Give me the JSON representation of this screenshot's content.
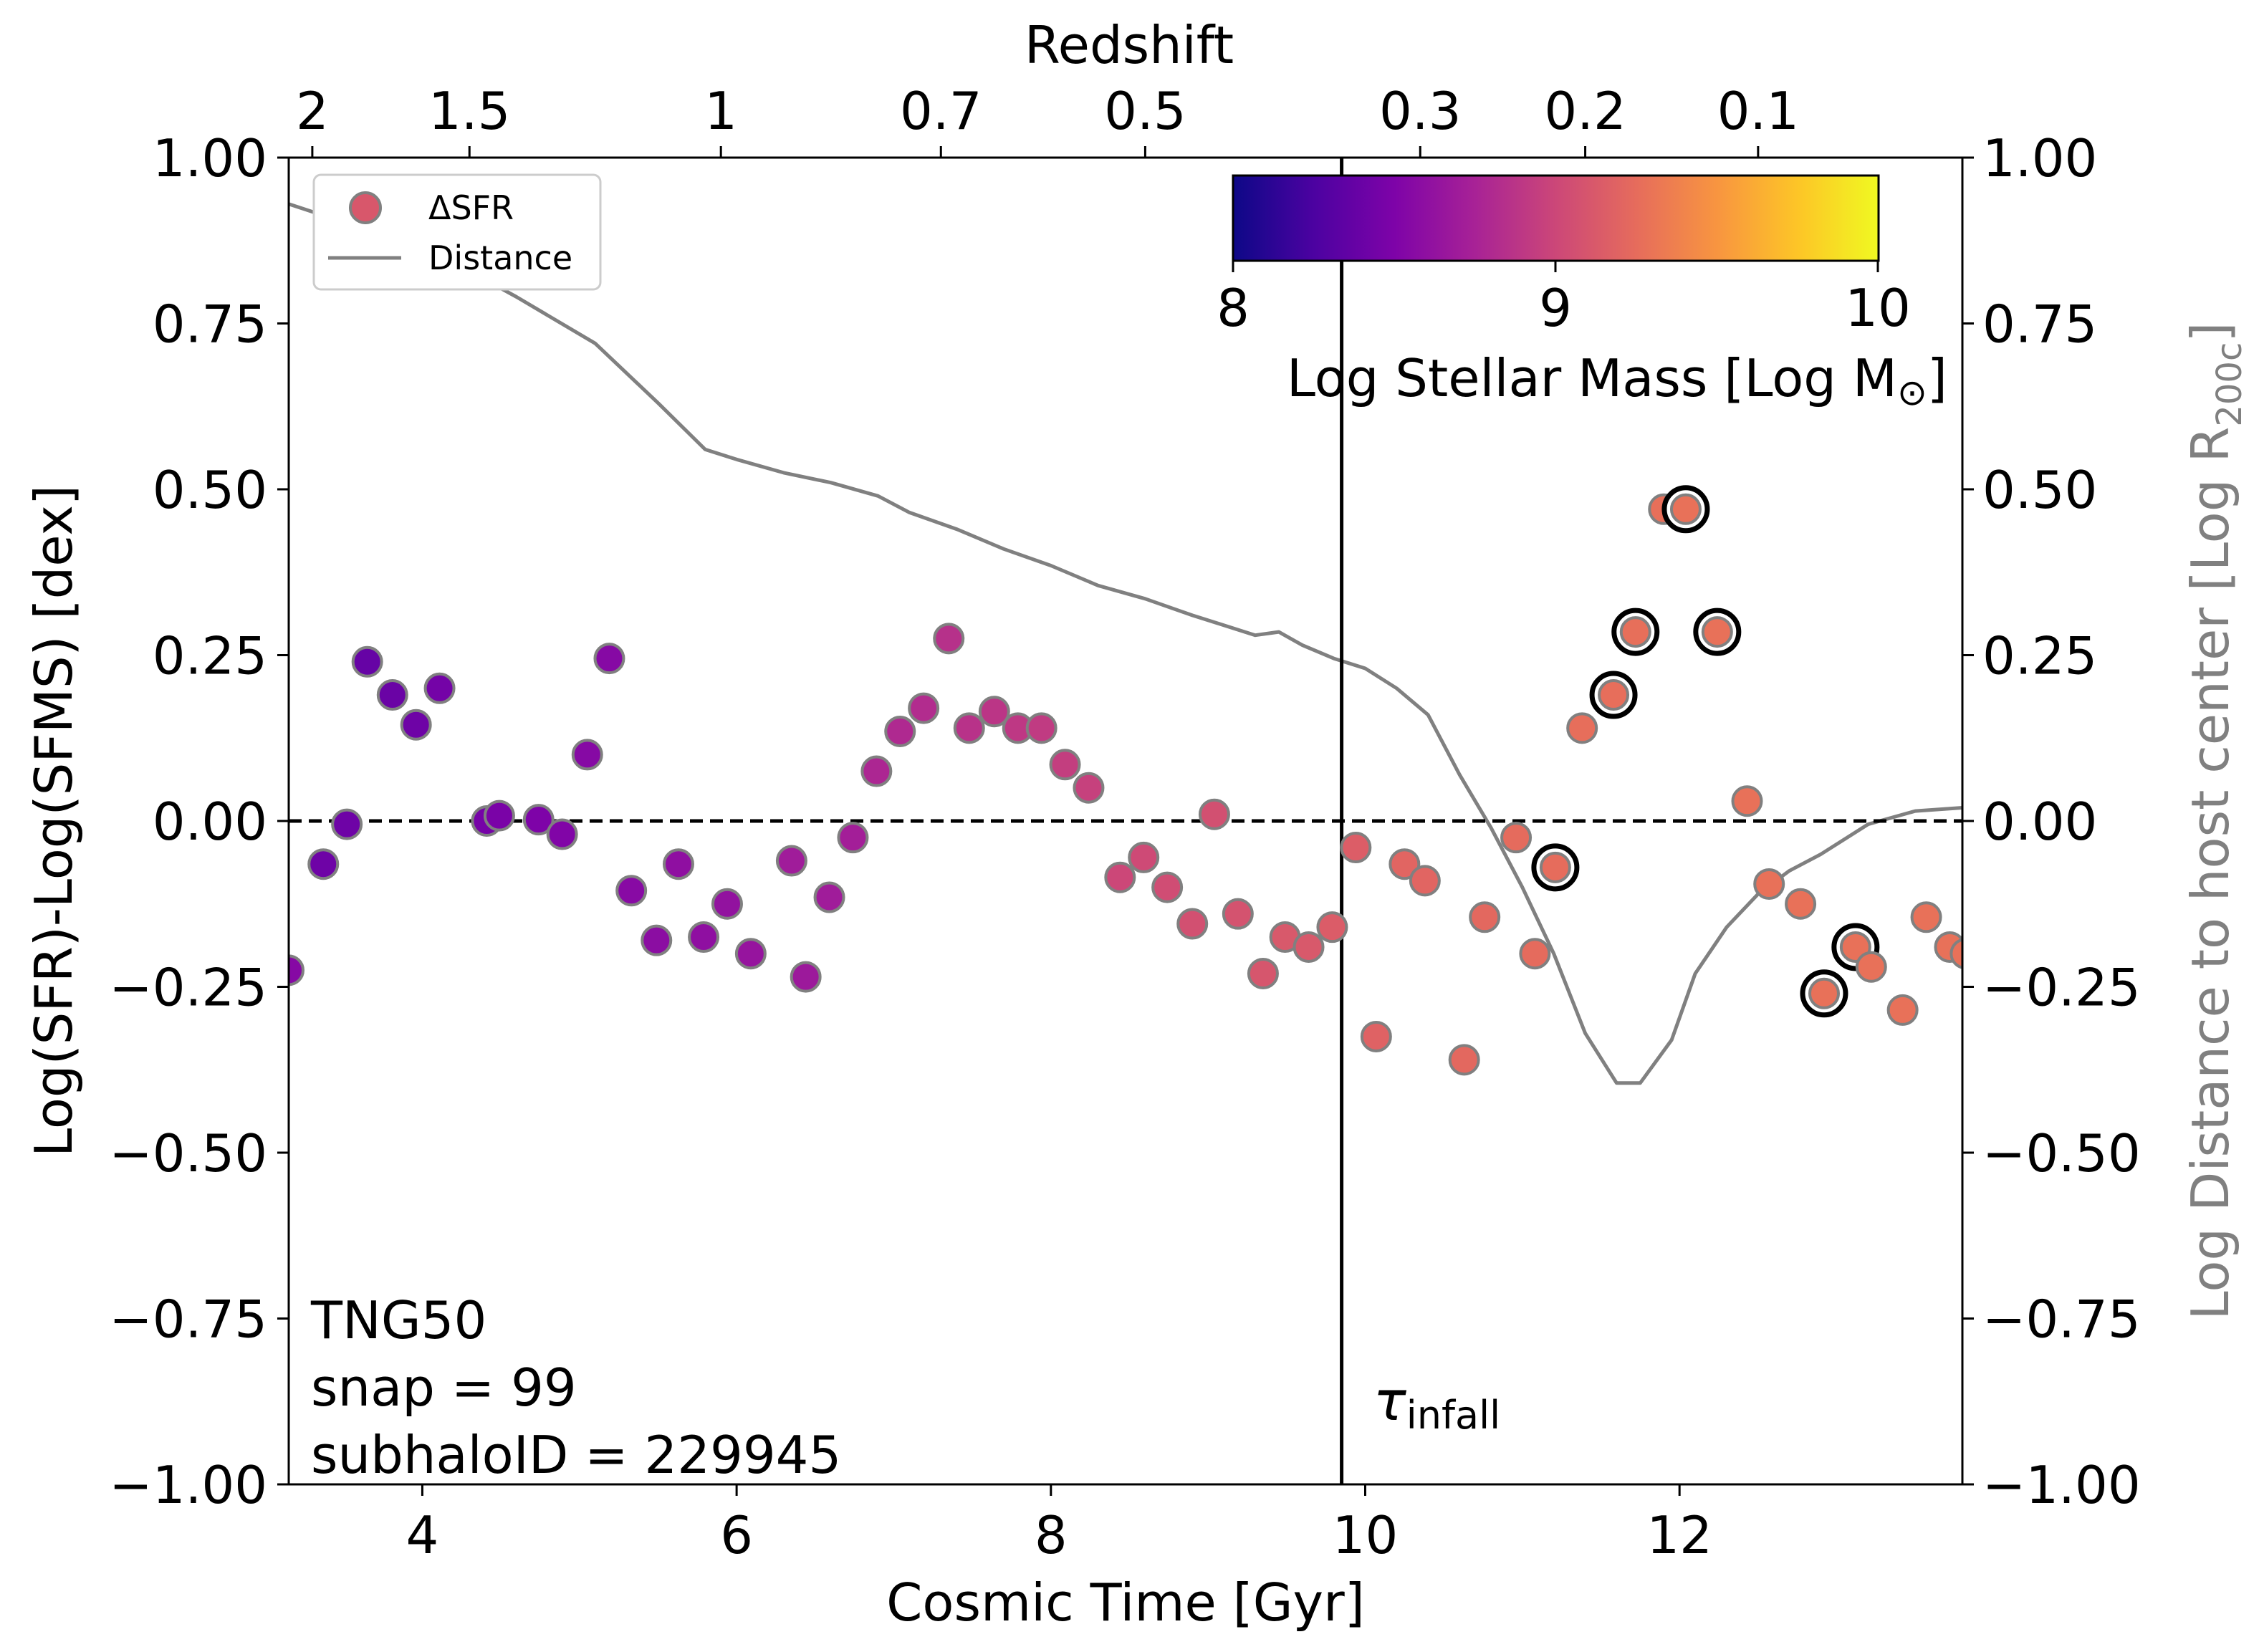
{
  "colors": {
    "marker_edge": "#808080",
    "distance_line": "#808080",
    "right_axis_title": "#808080",
    "highlight_ring": "#000000",
    "zero_line": "#000000",
    "infall_line": "#000000",
    "colormap": "plasma"
  },
  "chart_data": {
    "type": "scatter",
    "xlabel": "Cosmic Time [Gyr]",
    "ylabel": "Log(SFR)-Log(SFMS) [dex]",
    "right_ylabel_main": "Log Distance to host center [Log R",
    "right_ylabel_sub": "200c",
    "right_ylabel_end": "]",
    "top_xlabel": "Redshift",
    "xlim": [
      3.15,
      13.8
    ],
    "ylim": [
      -1.0,
      1.0
    ],
    "x_ticks": [
      4,
      6,
      8,
      10,
      12
    ],
    "x_tick_labels": [
      "4",
      "6",
      "8",
      "10",
      "12"
    ],
    "y_ticks": [
      -1.0,
      -0.75,
      -0.5,
      -0.25,
      0.0,
      0.25,
      0.5,
      0.75,
      1.0
    ],
    "y_tick_labels": [
      "−1.00",
      "−0.75",
      "−0.50",
      "−0.25",
      "0.00",
      "0.25",
      "0.50",
      "0.75",
      "1.00"
    ],
    "right_y_tick_labels": [
      "−1.00",
      "−0.75",
      "−0.50",
      "−0.25",
      "0.00",
      "0.25",
      "0.50",
      "0.75",
      "1.00"
    ],
    "top_ticks": [
      {
        "label": "2",
        "t": 3.3
      },
      {
        "label": "1.5",
        "t": 4.3
      },
      {
        "label": "1",
        "t": 5.9
      },
      {
        "label": "0.7",
        "t": 7.3
      },
      {
        "label": "0.5",
        "t": 8.6
      },
      {
        "label": "0.3",
        "t": 10.35
      },
      {
        "label": "0.2",
        "t": 11.4
      },
      {
        "label": "0.1",
        "t": 12.5
      }
    ],
    "legend": {
      "position": "top-left",
      "entries": [
        {
          "label": "ΔSFR",
          "kind": "marker"
        },
        {
          "label": "Distance",
          "kind": "line"
        }
      ]
    },
    "colorbar": {
      "label": "Log Stellar Mass [Log M",
      "label_symbol": "⊙",
      "label_end": "]",
      "range": [
        8,
        10
      ],
      "ticks": [
        "8",
        "9",
        "10"
      ],
      "colormap": "plasma"
    },
    "annotation": {
      "lines": [
        "TNG50",
        "snap = 99",
        "subhaloID = 229945"
      ]
    },
    "infall": {
      "t": 9.85,
      "label_main": "τ",
      "label_sub": "infall"
    },
    "zero_line_y": 0.0,
    "dsfr_points": [
      {
        "t": 3.15,
        "y": -0.225,
        "m": 8.55
      },
      {
        "t": 3.37,
        "y": -0.065,
        "m": 8.42
      },
      {
        "t": 3.52,
        "y": -0.005,
        "m": 8.42
      },
      {
        "t": 3.65,
        "y": 0.24,
        "m": 8.38
      },
      {
        "t": 3.81,
        "y": 0.19,
        "m": 8.4
      },
      {
        "t": 3.96,
        "y": 0.145,
        "m": 8.42
      },
      {
        "t": 4.11,
        "y": 0.2,
        "m": 8.45
      },
      {
        "t": 4.41,
        "y": 0.0,
        "m": 8.46
      },
      {
        "t": 4.49,
        "y": 0.008,
        "m": 8.48
      },
      {
        "t": 4.74,
        "y": 0.002,
        "m": 8.5
      },
      {
        "t": 4.89,
        "y": -0.02,
        "m": 8.52
      },
      {
        "t": 5.05,
        "y": 0.1,
        "m": 8.55
      },
      {
        "t": 5.19,
        "y": 0.245,
        "m": 8.55
      },
      {
        "t": 5.33,
        "y": -0.105,
        "m": 8.56
      },
      {
        "t": 5.49,
        "y": -0.18,
        "m": 8.58
      },
      {
        "t": 5.63,
        "y": -0.065,
        "m": 8.6
      },
      {
        "t": 5.79,
        "y": -0.175,
        "m": 8.6
      },
      {
        "t": 5.94,
        "y": -0.125,
        "m": 8.62
      },
      {
        "t": 6.09,
        "y": -0.2,
        "m": 8.64
      },
      {
        "t": 6.35,
        "y": -0.06,
        "m": 8.7
      },
      {
        "t": 6.44,
        "y": -0.235,
        "m": 8.68
      },
      {
        "t": 6.59,
        "y": -0.115,
        "m": 8.7
      },
      {
        "t": 6.74,
        "y": -0.025,
        "m": 8.72
      },
      {
        "t": 6.89,
        "y": 0.075,
        "m": 8.78
      },
      {
        "t": 7.04,
        "y": 0.135,
        "m": 8.8
      },
      {
        "t": 7.19,
        "y": 0.17,
        "m": 8.82
      },
      {
        "t": 7.35,
        "y": 0.275,
        "m": 8.85
      },
      {
        "t": 7.48,
        "y": 0.14,
        "m": 8.86
      },
      {
        "t": 7.64,
        "y": 0.165,
        "m": 8.88
      },
      {
        "t": 7.79,
        "y": 0.14,
        "m": 8.9
      },
      {
        "t": 7.94,
        "y": 0.14,
        "m": 8.92
      },
      {
        "t": 8.09,
        "y": 0.085,
        "m": 8.94
      },
      {
        "t": 8.24,
        "y": 0.05,
        "m": 8.96
      },
      {
        "t": 8.44,
        "y": -0.085,
        "m": 9.0
      },
      {
        "t": 8.59,
        "y": -0.055,
        "m": 9.02
      },
      {
        "t": 8.74,
        "y": -0.1,
        "m": 9.04
      },
      {
        "t": 8.9,
        "y": -0.155,
        "m": 9.06
      },
      {
        "t": 9.04,
        "y": 0.01,
        "m": 9.06
      },
      {
        "t": 9.19,
        "y": -0.14,
        "m": 9.08
      },
      {
        "t": 9.35,
        "y": -0.23,
        "m": 9.1
      },
      {
        "t": 9.49,
        "y": -0.175,
        "m": 9.12
      },
      {
        "t": 9.64,
        "y": -0.19,
        "m": 9.12
      },
      {
        "t": 9.79,
        "y": -0.16,
        "m": 9.14
      },
      {
        "t": 9.94,
        "y": -0.04,
        "m": 9.15
      },
      {
        "t": 10.07,
        "y": -0.325,
        "m": 9.18
      },
      {
        "t": 10.25,
        "y": -0.065,
        "m": 9.2
      },
      {
        "t": 10.38,
        "y": -0.09,
        "m": 9.2
      },
      {
        "t": 10.63,
        "y": -0.36,
        "m": 9.22
      },
      {
        "t": 10.76,
        "y": -0.145,
        "m": 9.22
      },
      {
        "t": 10.96,
        "y": -0.025,
        "m": 9.24
      },
      {
        "t": 11.08,
        "y": -0.2,
        "m": 9.24
      },
      {
        "t": 11.21,
        "y": -0.07,
        "m": 9.25,
        "ring": true
      },
      {
        "t": 11.38,
        "y": 0.14,
        "m": 9.26
      },
      {
        "t": 11.58,
        "y": 0.19,
        "m": 9.26,
        "ring": true
      },
      {
        "t": 11.72,
        "y": 0.285,
        "m": 9.27,
        "ring": true
      },
      {
        "t": 11.9,
        "y": 0.47,
        "m": 9.27
      },
      {
        "t": 12.04,
        "y": 0.47,
        "m": 9.28,
        "ring": true
      },
      {
        "t": 12.24,
        "y": 0.285,
        "m": 9.28,
        "ring": true
      },
      {
        "t": 12.43,
        "y": 0.03,
        "m": 9.28
      },
      {
        "t": 12.57,
        "y": -0.095,
        "m": 9.28
      },
      {
        "t": 12.77,
        "y": -0.125,
        "m": 9.28
      },
      {
        "t": 12.92,
        "y": -0.26,
        "m": 9.28,
        "ring": true
      },
      {
        "t": 13.12,
        "y": -0.19,
        "m": 9.28,
        "ring": true
      },
      {
        "t": 13.22,
        "y": -0.22,
        "m": 9.28
      },
      {
        "t": 13.42,
        "y": -0.285,
        "m": 9.28
      },
      {
        "t": 13.57,
        "y": -0.145,
        "m": 9.28
      },
      {
        "t": 13.72,
        "y": -0.19,
        "m": 9.28
      },
      {
        "t": 13.82,
        "y": -0.2,
        "m": 9.28
      }
    ],
    "distance_line": [
      {
        "t": 3.15,
        "y": 0.93
      },
      {
        "t": 3.6,
        "y": 0.895
      },
      {
        "t": 4.1,
        "y": 0.855
      },
      {
        "t": 4.6,
        "y": 0.79
      },
      {
        "t": 5.1,
        "y": 0.72
      },
      {
        "t": 5.5,
        "y": 0.63
      },
      {
        "t": 5.8,
        "y": 0.56
      },
      {
        "t": 6.0,
        "y": 0.545
      },
      {
        "t": 6.3,
        "y": 0.525
      },
      {
        "t": 6.6,
        "y": 0.51
      },
      {
        "t": 6.9,
        "y": 0.49
      },
      {
        "t": 7.1,
        "y": 0.465
      },
      {
        "t": 7.4,
        "y": 0.44
      },
      {
        "t": 7.7,
        "y": 0.41
      },
      {
        "t": 8.0,
        "y": 0.385
      },
      {
        "t": 8.3,
        "y": 0.355
      },
      {
        "t": 8.6,
        "y": 0.335
      },
      {
        "t": 8.9,
        "y": 0.31
      },
      {
        "t": 9.1,
        "y": 0.295
      },
      {
        "t": 9.3,
        "y": 0.28
      },
      {
        "t": 9.45,
        "y": 0.285
      },
      {
        "t": 9.6,
        "y": 0.265
      },
      {
        "t": 9.8,
        "y": 0.245
      },
      {
        "t": 10.0,
        "y": 0.23
      },
      {
        "t": 10.2,
        "y": 0.2
      },
      {
        "t": 10.4,
        "y": 0.16
      },
      {
        "t": 10.6,
        "y": 0.07
      },
      {
        "t": 10.8,
        "y": -0.01
      },
      {
        "t": 11.0,
        "y": -0.1
      },
      {
        "t": 11.2,
        "y": -0.2
      },
      {
        "t": 11.4,
        "y": -0.32
      },
      {
        "t": 11.6,
        "y": -0.395
      },
      {
        "t": 11.75,
        "y": -0.395
      },
      {
        "t": 11.95,
        "y": -0.33
      },
      {
        "t": 12.1,
        "y": -0.23
      },
      {
        "t": 12.3,
        "y": -0.16
      },
      {
        "t": 12.5,
        "y": -0.11
      },
      {
        "t": 12.7,
        "y": -0.075
      },
      {
        "t": 12.9,
        "y": -0.05
      },
      {
        "t": 13.2,
        "y": -0.005
      },
      {
        "t": 13.5,
        "y": 0.015
      },
      {
        "t": 13.8,
        "y": 0.02
      }
    ]
  }
}
